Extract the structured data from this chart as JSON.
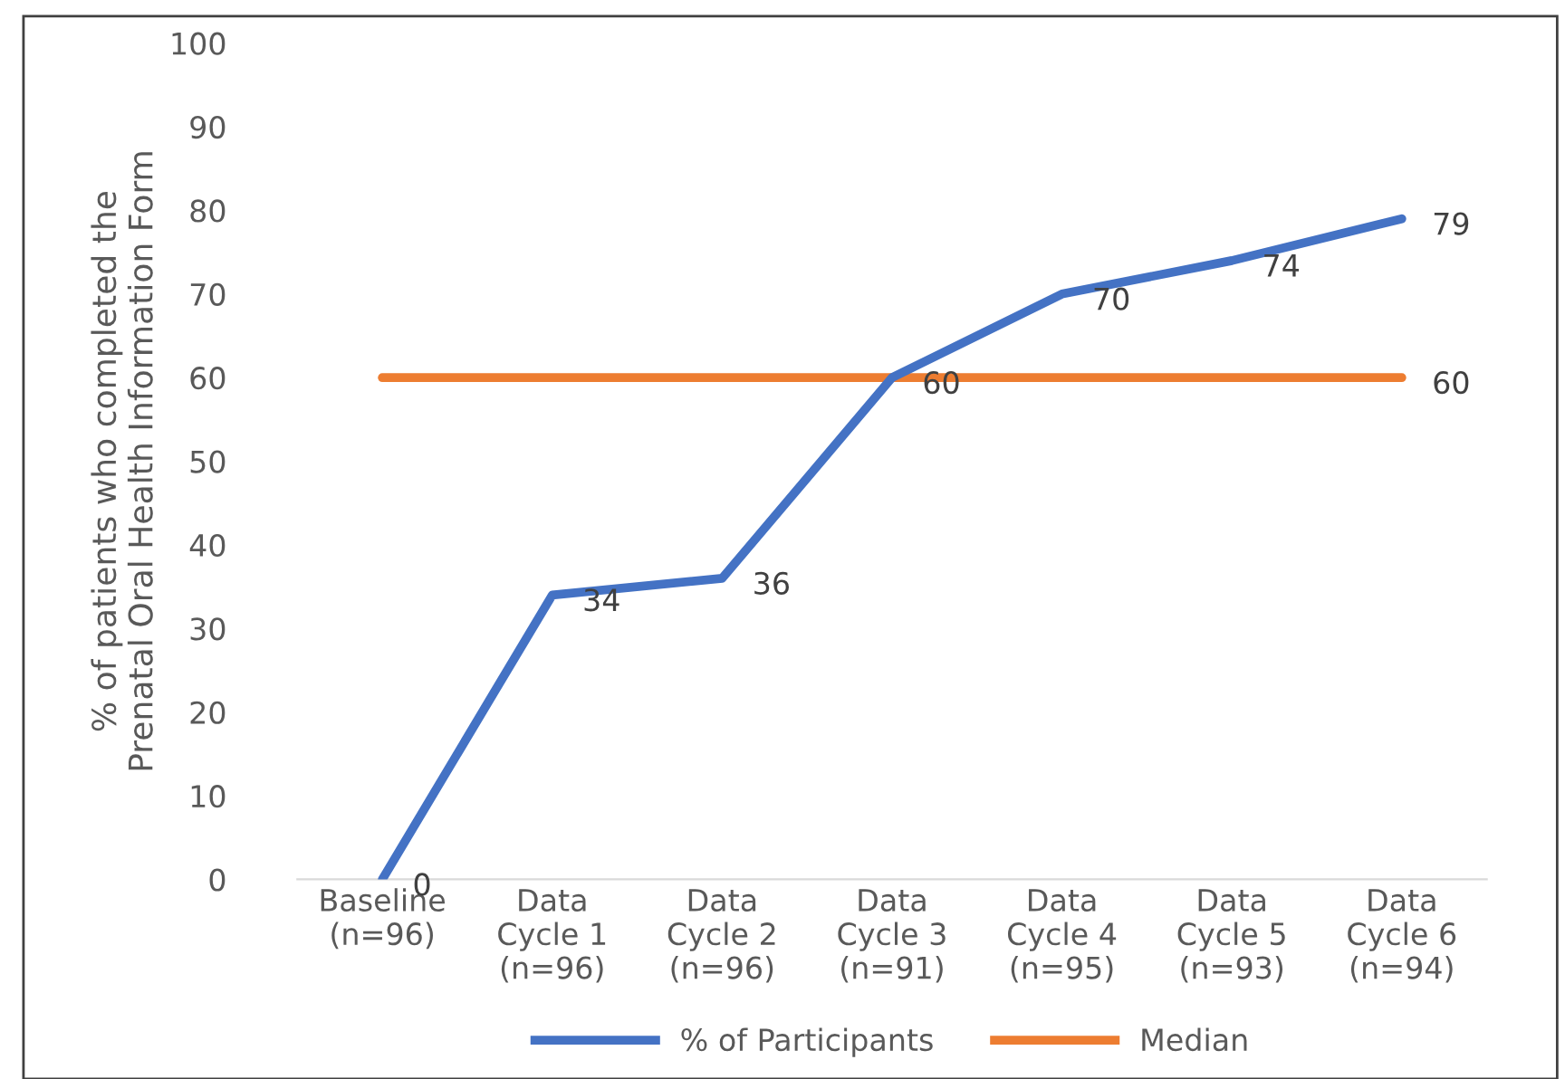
{
  "chart_data": {
    "type": "line",
    "ylabel": "% of patients who completed the\nPrenatal Oral Health Information Form",
    "categories": [
      "Baseline\n(n=96)",
      "Data\nCycle 1\n(n=96)",
      "Data\nCycle 2\n(n=96)",
      "Data\nCycle 3\n(n=91)",
      "Data\nCycle 4\n(n=95)",
      "Data\nCycle 5\n(n=93)",
      "Data\nCycle 6\n(n=94)"
    ],
    "series": [
      {
        "name": "% of Participants",
        "color": "#4472c4",
        "values": [
          0,
          34,
          36,
          60,
          70,
          74,
          79
        ],
        "value_labels": [
          "0",
          "34",
          "36",
          "60",
          "70",
          "74",
          "79"
        ]
      },
      {
        "name": "Median",
        "color": "#ed7d31",
        "values": [
          60,
          60,
          60,
          60,
          60,
          60,
          60
        ],
        "value_labels": [
          null,
          null,
          null,
          null,
          null,
          null,
          "60"
        ]
      }
    ],
    "ylim": [
      0,
      100
    ],
    "yticks": [
      0,
      10,
      20,
      30,
      40,
      50,
      60,
      70,
      80,
      90,
      100
    ],
    "grid": false,
    "legend": "bottom",
    "marker": "none",
    "line_style": "solid"
  }
}
